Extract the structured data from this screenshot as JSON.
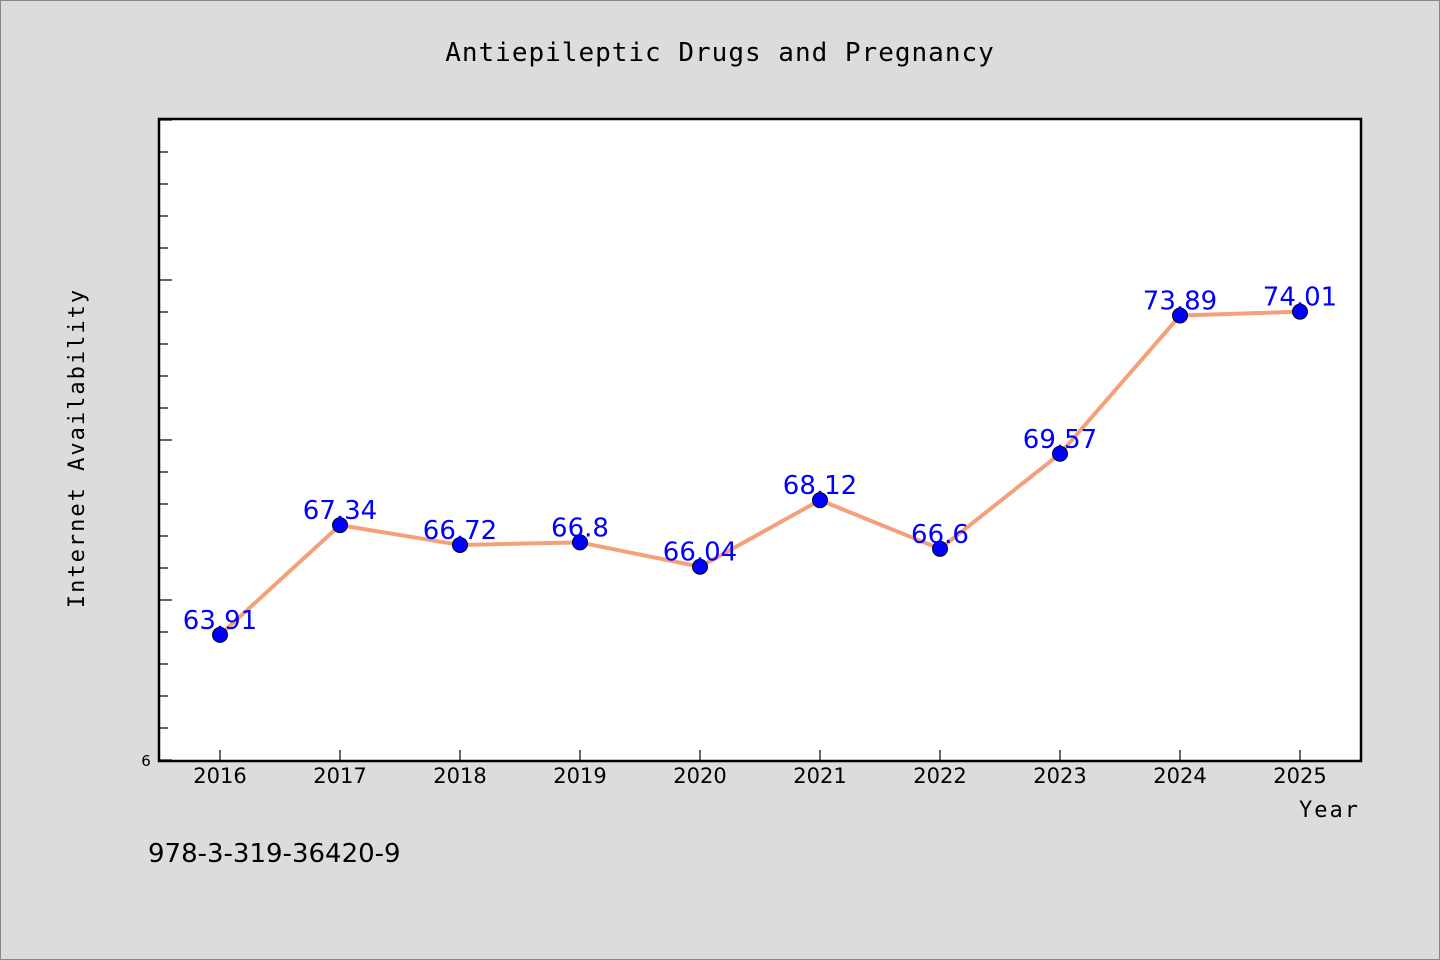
{
  "chart_data": {
    "type": "line",
    "title": "Antiepileptic Drugs and Pregnancy",
    "xlabel": "Year",
    "ylabel": "Internet Availability",
    "categories": [
      "2016",
      "2017",
      "2018",
      "2019",
      "2020",
      "2021",
      "2022",
      "2023",
      "2024",
      "2025"
    ],
    "series": [
      {
        "values": [
          63.91,
          67.34,
          66.72,
          66.8,
          66.04,
          68.12,
          66.6,
          69.57,
          73.89,
          74.01
        ],
        "data_labels": [
          "63.91",
          "67.34",
          "66.72",
          "66.8",
          "66.04",
          "68.12",
          "66.6",
          "69.57",
          "73.89",
          "74.01"
        ]
      }
    ],
    "ylim": [
      60,
      80
    ],
    "ytick_labels": [
      "6"
    ],
    "grid": false,
    "legend": "none",
    "colors": {
      "line": "#f4a07a",
      "marker": "#0000ff",
      "data_label": "#0000ff",
      "plot_background": "#ffffff",
      "page_background": "#dcdcdc"
    }
  },
  "footer_text": "978-3-319-36420-9"
}
